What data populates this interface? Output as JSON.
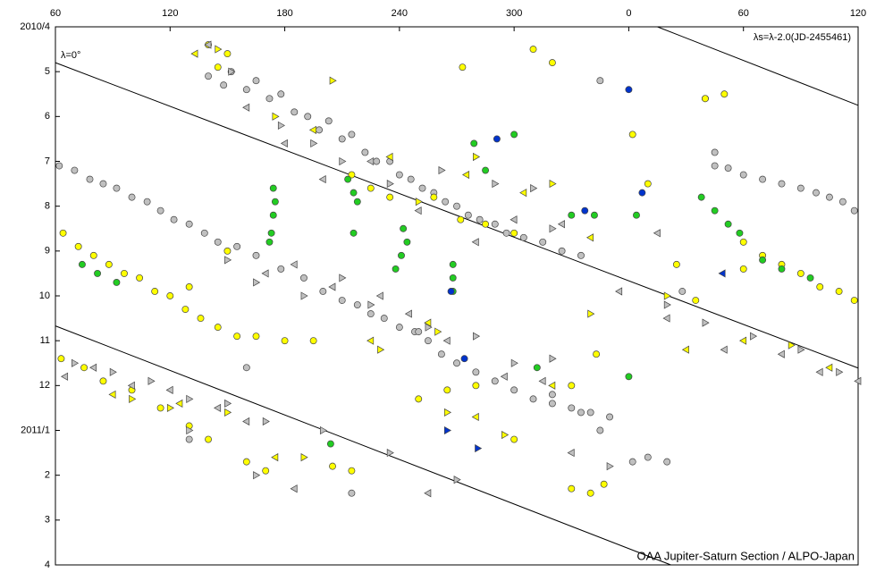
{
  "chart_data": {
    "type": "scatter",
    "annotations": [
      "λ=0°",
      "λs=λ-2.0(JD-2455461)",
      "OAA Jupiter-Saturn Section / ALPO-Japan"
    ],
    "xlim": [
      60,
      480
    ],
    "xticks": [
      60,
      120,
      180,
      240,
      300,
      {
        "value": 360,
        "label": "0"
      },
      {
        "value": 420,
        "label": "60"
      },
      {
        "value": 480,
        "label": "120"
      }
    ],
    "ylim": [
      12,
      0
    ],
    "yticks": [
      {
        "value": 0,
        "label": "2010/4"
      },
      {
        "value": 1,
        "label": "5"
      },
      {
        "value": 2,
        "label": "6"
      },
      {
        "value": 3,
        "label": "7"
      },
      {
        "value": 4,
        "label": "8"
      },
      {
        "value": 5,
        "label": "9"
      },
      {
        "value": 6,
        "label": "10"
      },
      {
        "value": 7,
        "label": "11"
      },
      {
        "value": 8,
        "label": "12"
      },
      {
        "value": 9,
        "label": "2011/1"
      },
      {
        "value": 10,
        "label": "2"
      },
      {
        "value": 11,
        "label": "3"
      },
      {
        "value": 12,
        "label": "4"
      }
    ],
    "reference_lines": [
      {
        "color": "#000000",
        "x": [
          60,
          480
        ],
        "values": [
          0.8,
          7.61
        ]
      },
      {
        "color": "#000000",
        "x": [
          375,
          480
        ],
        "values": [
          0,
          1.75
        ]
      },
      {
        "color": "#000000",
        "x": [
          60,
          382
        ],
        "values": [
          6.67,
          12
        ]
      }
    ],
    "series": [
      {
        "color": "#c0c0c0",
        "marker": "circle",
        "x": [
          140,
          148,
          152,
          160,
          165,
          172,
          178,
          185,
          192,
          198,
          203,
          210,
          215,
          222,
          228,
          235,
          240,
          246,
          252,
          258,
          264,
          270,
          276,
          282,
          290,
          296,
          305,
          315,
          325,
          335,
          405,
          412,
          420,
          430,
          440,
          450,
          458,
          465,
          472,
          478,
          62,
          70,
          78,
          85,
          92,
          100,
          108,
          115,
          122,
          130,
          138,
          145,
          155,
          165,
          178,
          190,
          200,
          210,
          218,
          225,
          232,
          240,
          248,
          255,
          262,
          270,
          280,
          290,
          300,
          310,
          320,
          330,
          340,
          350,
          160,
          250,
          345,
          400,
          405,
          388,
          362,
          370,
          380,
          215,
          130,
          345,
          335,
          320
        ],
        "values": [
          1.1,
          1.3,
          1.0,
          1.4,
          1.2,
          1.6,
          1.5,
          1.9,
          2.0,
          2.3,
          2.1,
          2.5,
          2.4,
          2.8,
          3.0,
          3.0,
          3.3,
          3.4,
          3.6,
          3.7,
          3.9,
          4.0,
          4.2,
          4.3,
          4.4,
          4.6,
          4.7,
          4.8,
          5.0,
          5.1,
          3.1,
          3.15,
          3.3,
          3.4,
          3.5,
          3.6,
          3.7,
          3.8,
          3.9,
          4.1,
          3.1,
          3.2,
          3.4,
          3.5,
          3.6,
          3.8,
          3.9,
          4.1,
          4.3,
          4.4,
          4.6,
          4.8,
          4.9,
          5.1,
          5.4,
          5.6,
          5.9,
          6.1,
          6.2,
          6.4,
          6.5,
          6.7,
          6.8,
          7.0,
          7.3,
          7.5,
          7.7,
          7.9,
          8.1,
          8.3,
          8.4,
          8.5,
          8.6,
          8.7,
          7.6,
          6.8,
          1.2,
          1.6,
          2.8,
          5.9,
          9.7,
          9.6,
          9.7,
          10.4,
          9.2,
          9.0,
          8.6,
          8.2
        ]
      },
      {
        "color": "#ffff00",
        "marker": "circle",
        "x": [
          64,
          72,
          80,
          88,
          96,
          104,
          112,
          120,
          128,
          136,
          145,
          155,
          165,
          180,
          195,
          150,
          130,
          215,
          225,
          235,
          258,
          272,
          285,
          300,
          273,
          310,
          320,
          343,
          330,
          340,
          347,
          362,
          370,
          385,
          395,
          420,
          430,
          440,
          450,
          460,
          470,
          478,
          420,
          400,
          410,
          63,
          75,
          85,
          100,
          115,
          130,
          140,
          160,
          170,
          205,
          215,
          250,
          265,
          280,
          300,
          330,
          140,
          145,
          150
        ],
        "values": [
          4.6,
          4.9,
          5.1,
          5.3,
          5.5,
          5.6,
          5.9,
          6.0,
          6.3,
          6.5,
          6.7,
          6.9,
          6.9,
          7.0,
          7.0,
          5.0,
          5.8,
          3.3,
          3.6,
          3.8,
          3.8,
          4.3,
          4.4,
          4.6,
          0.9,
          0.5,
          0.8,
          7.3,
          8.0,
          10.4,
          10.2,
          2.4,
          3.5,
          5.3,
          6.1,
          4.8,
          5.1,
          5.3,
          5.5,
          5.8,
          5.9,
          6.1,
          5.4,
          1.6,
          1.5,
          7.4,
          7.6,
          7.9,
          8.1,
          8.5,
          8.9,
          9.2,
          9.7,
          9.9,
          9.8,
          9.9,
          8.3,
          8.1,
          8.0,
          9.2,
          10.3,
          0.4,
          0.9,
          0.6
        ]
      },
      {
        "color": "#22cc22",
        "marker": "circle",
        "x": [
          174,
          175,
          174,
          173,
          172,
          213,
          216,
          218,
          216,
          242,
          244,
          241,
          238,
          268,
          268,
          268,
          279,
          285,
          300,
          330,
          342,
          398,
          405,
          412,
          418,
          430,
          440,
          455,
          74,
          82,
          92,
          204,
          312,
          360,
          364
        ],
        "values": [
          3.6,
          3.9,
          4.2,
          4.6,
          4.8,
          3.4,
          3.7,
          3.9,
          4.6,
          4.5,
          4.8,
          5.1,
          5.4,
          5.3,
          5.6,
          5.9,
          2.6,
          3.2,
          2.4,
          4.2,
          4.2,
          3.8,
          4.1,
          4.4,
          4.6,
          5.2,
          5.4,
          5.6,
          5.3,
          5.5,
          5.7,
          9.3,
          7.6,
          7.8,
          4.2
        ]
      },
      {
        "color": "#0033cc",
        "marker": "circle",
        "x": [
          291,
          360,
          367,
          337,
          267,
          274
        ],
        "values": [
          2.5,
          1.4,
          3.7,
          4.1,
          5.9,
          7.4
        ]
      },
      {
        "color": "#c0c0c0",
        "marker": "triangle-right",
        "x": [
          152,
          178,
          195,
          210,
          235,
          262,
          290,
          310,
          320,
          150,
          165,
          190,
          210,
          225,
          255,
          280,
          300,
          320,
          70,
          90,
          110,
          130,
          150,
          170,
          200,
          235,
          270,
          380,
          400,
          425,
          450,
          470,
          130,
          165,
          350
        ],
        "values": [
          1.0,
          2.2,
          2.6,
          3.0,
          3.5,
          3.2,
          3.5,
          3.6,
          4.5,
          5.2,
          5.7,
          6.0,
          5.6,
          6.2,
          6.7,
          6.9,
          7.5,
          7.4,
          7.5,
          7.7,
          7.9,
          8.3,
          8.4,
          8.8,
          9.0,
          9.5,
          10.1,
          6.2,
          6.6,
          6.9,
          7.2,
          7.7,
          9.0,
          10.0,
          9.8
        ]
      },
      {
        "color": "#c0c0c0",
        "marker": "triangle-left",
        "x": [
          140,
          160,
          180,
          200,
          225,
          250,
          280,
          300,
          325,
          170,
          185,
          205,
          230,
          245,
          265,
          295,
          315,
          65,
          80,
          100,
          120,
          145,
          160,
          380,
          410,
          440,
          460,
          480,
          375,
          355,
          330,
          185,
          255
        ],
        "values": [
          0.4,
          1.8,
          2.6,
          3.4,
          3.0,
          4.1,
          4.8,
          4.3,
          4.4,
          5.5,
          5.3,
          5.8,
          6.0,
          6.4,
          7.0,
          7.8,
          7.9,
          7.8,
          7.6,
          8.0,
          8.1,
          8.5,
          8.8,
          6.5,
          7.2,
          7.3,
          7.7,
          7.9,
          4.6,
          5.9,
          9.5,
          10.3,
          10.4
        ]
      },
      {
        "color": "#ffff00",
        "marker": "triangle-right",
        "x": [
          145,
          175,
          205,
          250,
          280,
          320,
          100,
          120,
          150,
          190,
          230,
          265,
          295,
          340,
          380,
          445,
          260
        ],
        "values": [
          0.5,
          2.0,
          1.2,
          3.9,
          2.9,
          3.5,
          8.3,
          8.5,
          8.6,
          9.6,
          7.2,
          8.6,
          9.1,
          6.4,
          6.0,
          7.1,
          6.8
        ]
      },
      {
        "color": "#ffff00",
        "marker": "triangle-left",
        "x": [
          133,
          195,
          235,
          275,
          305,
          340,
          90,
          125,
          175,
          225,
          280,
          320,
          390,
          420,
          465,
          255
        ],
        "values": [
          0.6,
          2.3,
          2.9,
          3.3,
          3.7,
          4.7,
          8.2,
          8.4,
          9.6,
          7.0,
          8.7,
          8.0,
          7.2,
          7.0,
          7.6,
          6.6
        ]
      },
      {
        "color": "#0033cc",
        "marker": "triangle-right",
        "x": [
          265,
          281
        ],
        "values": [
          9.0,
          9.4
        ]
      },
      {
        "color": "#0033cc",
        "marker": "triangle-left",
        "x": [
          409
        ],
        "values": [
          5.5
        ]
      }
    ]
  }
}
